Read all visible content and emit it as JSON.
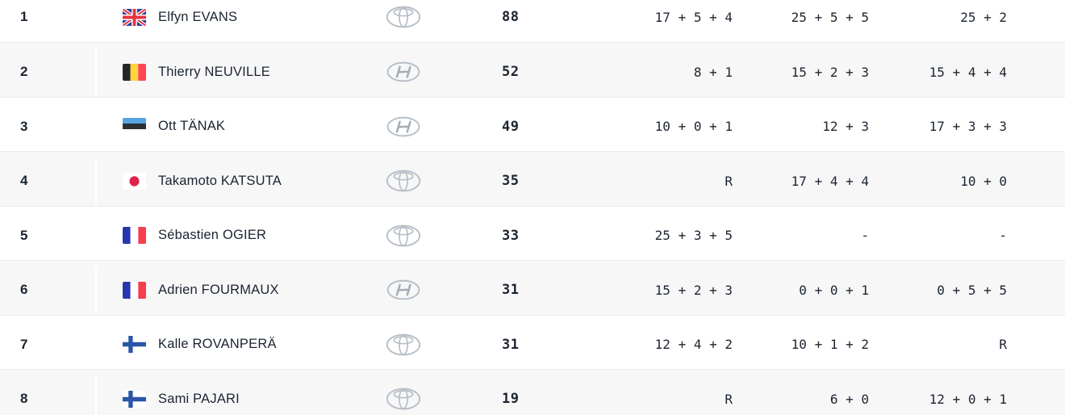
{
  "page": {
    "type": "rally-championship-standings-table"
  },
  "colors": {
    "text_navy": "#1B2431",
    "row_alt_bg": "#F7F7F8",
    "row_divider": "#EBEBED",
    "column_divider": "#FFFFFF",
    "logo_silver": "#AFB8C2"
  },
  "standings": {
    "rows": [
      {
        "pos": "1",
        "country": {
          "code": "gb",
          "name": "Great Britain"
        },
        "driver": "Elfyn EVANS",
        "team": {
          "code": "toyota",
          "name": "Toyota"
        },
        "total": "88",
        "p1": "17 + 5 + 4",
        "p2": "25 + 5 + 5",
        "p3": "25 + 2"
      },
      {
        "pos": "2",
        "country": {
          "code": "be",
          "name": "Belgium"
        },
        "driver": "Thierry NEUVILLE",
        "team": {
          "code": "hyundai",
          "name": "Hyundai"
        },
        "total": "52",
        "p1": "8 + 1",
        "p2": "15 + 2 + 3",
        "p3": "15 + 4 + 4"
      },
      {
        "pos": "3",
        "country": {
          "code": "ee",
          "name": "Estonia"
        },
        "driver": "Ott TÄNAK",
        "team": {
          "code": "hyundai",
          "name": "Hyundai"
        },
        "total": "49",
        "p1": "10 + 0 + 1",
        "p2": "12 + 3",
        "p3": "17 + 3 + 3"
      },
      {
        "pos": "4",
        "country": {
          "code": "jp",
          "name": "Japan"
        },
        "driver": "Takamoto KATSUTA",
        "team": {
          "code": "toyota",
          "name": "Toyota"
        },
        "total": "35",
        "p1": "R",
        "p2": "17 + 4 + 4",
        "p3": "10 + 0"
      },
      {
        "pos": "5",
        "country": {
          "code": "fr",
          "name": "France"
        },
        "driver": "Sébastien OGIER",
        "team": {
          "code": "toyota",
          "name": "Toyota"
        },
        "total": "33",
        "p1": "25 + 3 + 5",
        "p2": "-",
        "p3": "-"
      },
      {
        "pos": "6",
        "country": {
          "code": "fr",
          "name": "France"
        },
        "driver": "Adrien FOURMAUX",
        "team": {
          "code": "hyundai",
          "name": "Hyundai"
        },
        "total": "31",
        "p1": "15 + 2 + 3",
        "p2": "0 + 0 + 1",
        "p3": "0 + 5 + 5"
      },
      {
        "pos": "7",
        "country": {
          "code": "fi",
          "name": "Finland"
        },
        "driver": "Kalle ROVANPERÄ",
        "team": {
          "code": "toyota",
          "name": "Toyota"
        },
        "total": "31",
        "p1": "12 + 4 + 2",
        "p2": "10 + 1 + 2",
        "p3": "R"
      },
      {
        "pos": "8",
        "country": {
          "code": "fi",
          "name": "Finland"
        },
        "driver": "Sami PAJARI",
        "team": {
          "code": "toyota",
          "name": "Toyota"
        },
        "total": "19",
        "p1": "R",
        "p2": "6 + 0",
        "p3": "12 + 0 + 1"
      }
    ]
  }
}
